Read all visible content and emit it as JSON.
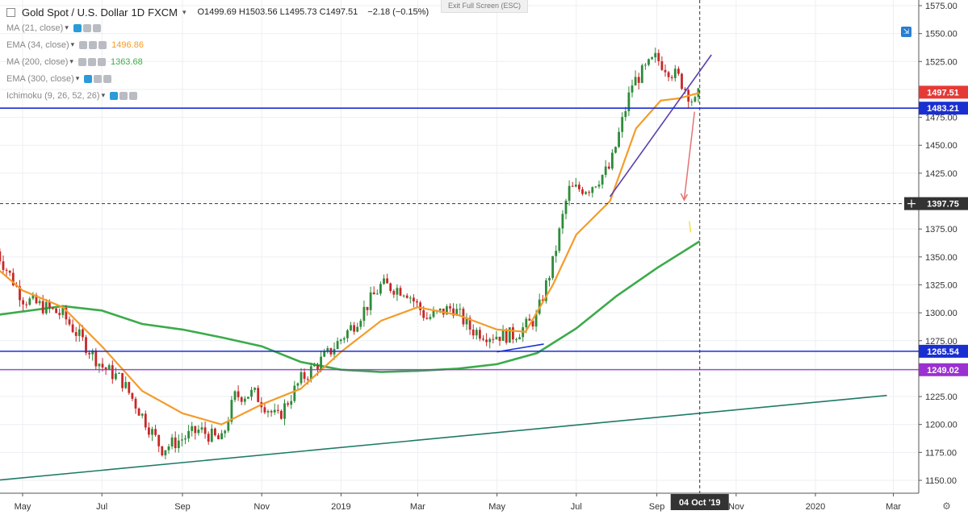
{
  "header": {
    "symbol": "Gold Spot / U.S. Dollar",
    "interval": "1D",
    "source": "FXCM",
    "ohlc": "O1499.69  H1503.56  L1495.73  C1497.51",
    "change": "−2.18 (−0.15%)",
    "exit_fullscreen": "Exit Full Screen (ESC)"
  },
  "indicators": [
    {
      "label": "MA (21, close)",
      "value": "",
      "color": "#888888"
    },
    {
      "label": "EMA (34, close)",
      "value": "1496.86",
      "color": "#f39c2a"
    },
    {
      "label": "MA (200, close)",
      "value": "1363.68",
      "color": "#3bab4a"
    },
    {
      "label": "EMA (300, close)",
      "value": "",
      "color": "#888888"
    },
    {
      "label": "Ichimoku (9, 26, 52, 26)",
      "value": "",
      "color": "#888888"
    }
  ],
  "price_tags": [
    {
      "label": "1497.51",
      "value": 1497.51,
      "color": "#e53935"
    },
    {
      "label": "1483.21",
      "value": 1483.21,
      "color": "#1a2fd0"
    },
    {
      "label": "1397.75",
      "value": 1397.75,
      "color": "#333333"
    },
    {
      "label": "1265.54",
      "value": 1265.54,
      "color": "#1a2fd0"
    },
    {
      "label": "1249.02",
      "value": 1249.02,
      "color": "#9a31d0"
    }
  ],
  "crosshair_date": "04 Oct '19",
  "chart_data": {
    "type": "line",
    "ylim": [
      1140,
      1580
    ],
    "yticks": [
      1150,
      1175,
      1200,
      1225,
      1250,
      1275,
      1300,
      1325,
      1350,
      1375,
      1400,
      1425,
      1450,
      1475,
      1500,
      1525,
      1550,
      1575
    ],
    "ytick_labels": [
      "1150.00",
      "1175.00",
      "1200.00",
      "1225.00",
      "1250.00",
      "1275.00",
      "1300.00",
      "1325.00",
      "1350.00",
      "1375.00",
      "1400.00",
      "1425.00",
      "1450.00",
      "1475.00",
      "1500.00",
      "1525.00",
      "1550.00",
      "1575.00"
    ],
    "xtick_labels": [
      "May",
      "Jul",
      "Sep",
      "Nov",
      "2019",
      "Mar",
      "May",
      "Jul",
      "Sep",
      "Nov",
      "2020",
      "Mar"
    ],
    "x_dates": [
      "2018-05",
      "2018-07",
      "2018-09",
      "2018-11",
      "2019-01",
      "2019-03",
      "2019-05",
      "2019-07",
      "2019-09",
      "2019-11",
      "2020-01",
      "2020-03"
    ],
    "series": [
      {
        "x": [
          "2018-04-11",
          "2018-05-01",
          "2018-06-01",
          "2018-07-01",
          "2018-07-16",
          "2018-08-16",
          "2018-09-14",
          "2018-10-01",
          "2018-10-11",
          "2018-10-26",
          "2018-11-13",
          "2018-12-01",
          "2018-12-21",
          "2019-01-11",
          "2019-02-01",
          "2019-02-20",
          "2019-03-08",
          "2019-03-28",
          "2019-04-11",
          "2019-04-25",
          "2019-05-14",
          "2019-05-31",
          "2019-06-13",
          "2019-06-25",
          "2019-07-11",
          "2019-07-27",
          "2019-08-13",
          "2019-08-31",
          "2019-09-18",
          "2019-09-30",
          "2019-10-04"
        ],
        "y": [
          1355,
          1313,
          1298,
          1252,
          1240,
          1178,
          1195,
          1185,
          1225,
          1228,
          1205,
          1240,
          1262,
          1290,
          1325,
          1320,
          1295,
          1305,
          1285,
          1280,
          1280,
          1295,
          1345,
          1410,
          1412,
          1430,
          1505,
          1528,
          1510,
          1487,
          1497
        ]
      },
      {
        "name": "EMA (34, close)",
        "x": [
          "2018-04-11",
          "2018-05-01",
          "2018-06-01",
          "2018-07-01",
          "2018-08-01",
          "2018-09-01",
          "2018-10-01",
          "2018-11-01",
          "2018-12-01",
          "2019-01-01",
          "2019-02-01",
          "2019-03-01",
          "2019-04-01",
          "2019-05-01",
          "2019-05-23",
          "2019-06-13",
          "2019-07-01",
          "2019-07-27",
          "2019-08-16",
          "2019-09-04",
          "2019-09-18",
          "2019-10-04"
        ],
        "y": [
          1340,
          1320,
          1305,
          1270,
          1230,
          1210,
          1200,
          1218,
          1232,
          1265,
          1293,
          1305,
          1298,
          1285,
          1283,
          1325,
          1370,
          1400,
          1465,
          1490,
          1492,
          1497
        ]
      },
      {
        "name": "MA (200, close)",
        "x": [
          "2018-04-11",
          "2018-06-01",
          "2018-07-01",
          "2018-08-01",
          "2018-09-01",
          "2018-10-01",
          "2018-11-01",
          "2018-12-01",
          "2019-01-01",
          "2019-02-01",
          "2019-03-01",
          "2019-04-01",
          "2019-05-01",
          "2019-06-01",
          "2019-07-01",
          "2019-08-01",
          "2019-09-01",
          "2019-10-04"
        ],
        "y": [
          1298,
          1306,
          1302,
          1290,
          1285,
          1278,
          1270,
          1256,
          1249,
          1247,
          1248,
          1250,
          1254,
          1264,
          1286,
          1315,
          1340,
          1364
        ]
      },
      {
        "name": "Trendline (long-term support)",
        "x": [
          "2018-04-11",
          "2020-02-25"
        ],
        "y": [
          1150,
          1226
        ]
      },
      {
        "name": "Trendline (rising)",
        "x": [
          "2019-07-27",
          "2019-10-13"
        ],
        "y": [
          1404,
          1531
        ]
      }
    ]
  }
}
